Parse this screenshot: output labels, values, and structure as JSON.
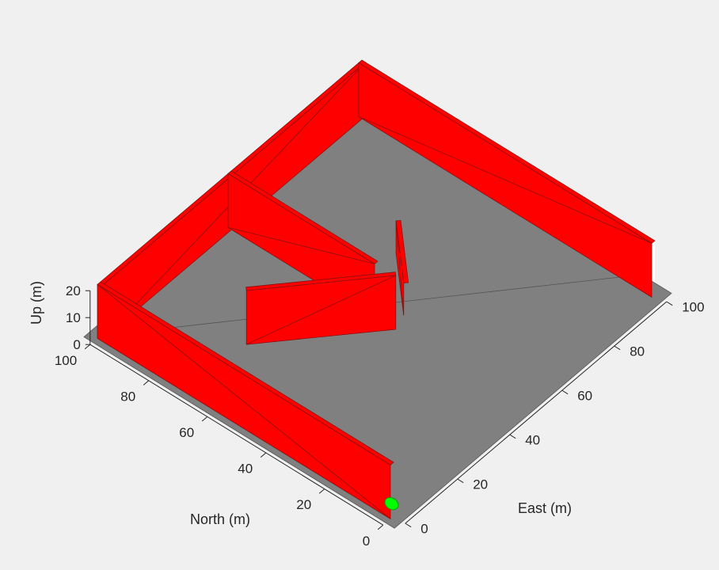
{
  "chart_data": {
    "type": "3d-scene",
    "view": "isometric-3d",
    "axes": {
      "x": {
        "label": "East (m)",
        "range": [
          0,
          100
        ],
        "ticks": [
          "0",
          "20",
          "40",
          "60",
          "80",
          "100"
        ]
      },
      "y": {
        "label": "North (m)",
        "range": [
          0,
          100
        ],
        "ticks": [
          "0",
          "20",
          "40",
          "60",
          "80",
          "100"
        ]
      },
      "z": {
        "label": "Up (m)",
        "range": [
          0,
          20
        ],
        "ticks": [
          "0",
          "10",
          "20"
        ]
      }
    },
    "ground": {
      "x_range": [
        0,
        100
      ],
      "y_range": [
        0,
        100
      ],
      "color": "#808080"
    },
    "walls": [
      {
        "name": "outer-west-wall",
        "from": [
          0,
          0
        ],
        "to": [
          0,
          100
        ],
        "height": 20
      },
      {
        "name": "outer-north-wall",
        "from": [
          0,
          100
        ],
        "to": [
          100,
          100
        ],
        "height": 20
      },
      {
        "name": "outer-east-wall",
        "from": [
          100,
          100
        ],
        "to": [
          100,
          0
        ],
        "height": 20
      },
      {
        "name": "inner-wall-middle",
        "from": [
          50,
          100
        ],
        "to": [
          50,
          50
        ],
        "height": 20
      },
      {
        "name": "inner-wall-west",
        "from": [
          22,
          70
        ],
        "to": [
          50,
          44
        ],
        "height": 20
      },
      {
        "name": "inner-wall-east",
        "from": [
          55,
          44
        ],
        "to": [
          70,
          60
        ],
        "height": 12
      }
    ],
    "wall_color": "#ff0000",
    "vehicle": {
      "x": 2,
      "y": 3,
      "z": 1,
      "color": "#00ff00"
    }
  }
}
